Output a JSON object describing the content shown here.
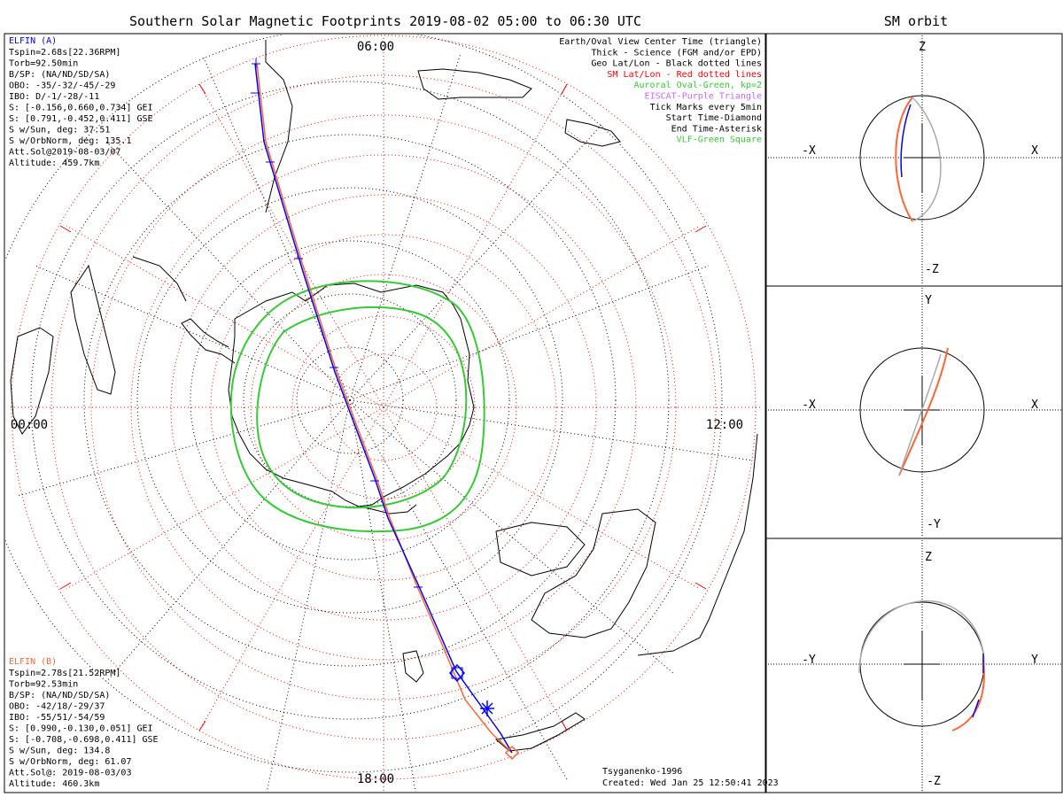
{
  "title": "Southern Solar Magnetic Footprints 2019-08-02 05:00 to 06:30 UTC",
  "orbit_title": "SM orbit",
  "times": {
    "top": "06:00",
    "left": "00:00",
    "right": "12:00",
    "bottom": "18:00"
  },
  "legend": [
    {
      "text": "Earth/Oval View Center Time (triangle)",
      "color": "#000000"
    },
    {
      "text": "Thick - Science (FGM and/or EPD)",
      "color": "#000000"
    },
    {
      "text": "Geo Lat/Lon - Black dotted lines",
      "color": "#000000"
    },
    {
      "text": "SM Lat/Lon - Red dotted lines",
      "color": "#ff0000"
    },
    {
      "text": "Auroral Oval-Green, kp=2",
      "color": "#33cc33"
    },
    {
      "text": "EISCAT-Purple Triangle",
      "color": "#cc66ff"
    },
    {
      "text": "Tick Marks every 5min",
      "color": "#000000"
    },
    {
      "text": "Start Time-Diamond",
      "color": "#000000"
    },
    {
      "text": "End Time-Asterisk",
      "color": "#000000"
    },
    {
      "text": "VLF-Green Square",
      "color": "#33cc33"
    }
  ],
  "elfin_a": {
    "name": "ELFIN (A)",
    "color": "#0000ff",
    "lines": [
      "Tspin=2.68s[22.36RPM]",
      "Torb=92.50min",
      "B/SP: (NA/ND/SD/SA)",
      "OBO: -35/-32/-45/-29",
      "IBO: D/-1/-28/-11",
      "S: [-0.156,0.660,0.734] GEI",
      "S: [0.791,-0.452,0.411] GSE",
      "S w/Sun, deg: 37.51",
      "S w/OrbNorm, deg: 135.1",
      "Att.Sol@2019-08-03/07",
      "Altitude: 459.7km"
    ]
  },
  "elfin_b": {
    "name": "ELFIN (B)",
    "color": "#ff6633",
    "lines": [
      "Tspin=2.78s[21.52RPM]",
      "Torb=92.53min",
      "B/SP: (NA/ND/SD/SA)",
      "OBO: -42/18/-29/37",
      "IBO: -55/51/-54/59",
      "S: [0.990,-0.130,0.051] GEI",
      "S: [-0.708,-0.698,0.411] GSE",
      "S w/Sun, deg: 134.8",
      "S w/OrbNorm, deg: 61.07",
      "Att.Sol@: 2019-08-03/03",
      "Altitude: 460.3km"
    ]
  },
  "credits": [
    "Tsyganenko-1996",
    "Created: Wed Jan 25 12:50:41 2023"
  ],
  "orbit_panels": [
    {
      "top": "Z",
      "bottom": "-Z",
      "left": "-X",
      "right": "X"
    },
    {
      "top": "Y",
      "bottom": "-Y",
      "left": "-X",
      "right": "X"
    },
    {
      "top": "Z",
      "bottom": "-Z",
      "left": "-Y",
      "right": "Y"
    }
  ],
  "colors": {
    "sm_grid": "#ff0000",
    "oval": "#33cc33",
    "elfin_a": "#0000ff",
    "elfin_b": "#ff6633",
    "orbit_gray": "#aaaaaa"
  }
}
